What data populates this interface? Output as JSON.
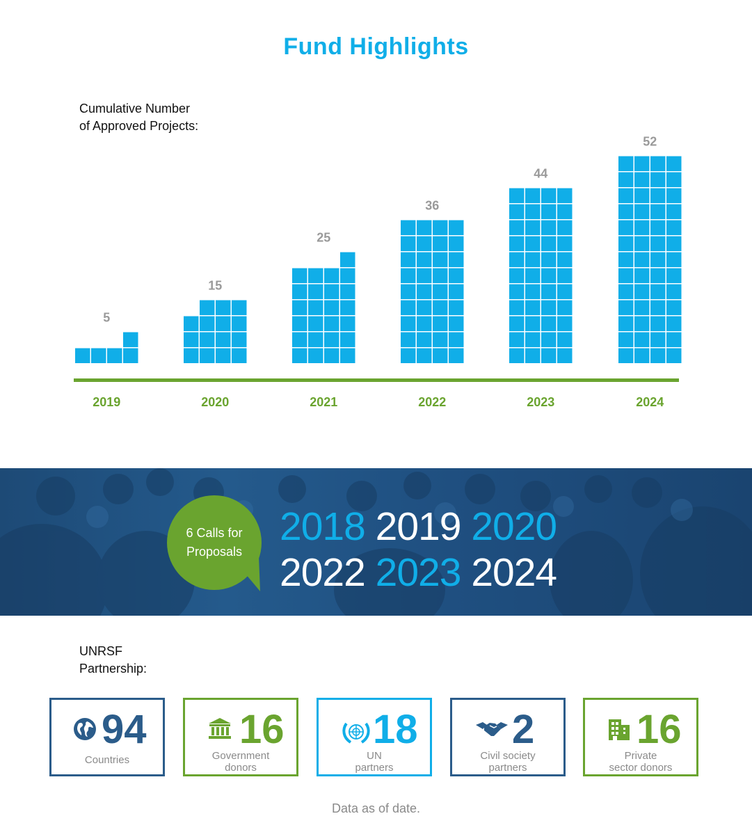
{
  "title": "Fund Highlights",
  "chart_label_line1": "Cumulative Number",
  "chart_label_line2": "of Approved Projects:",
  "chart_data": {
    "type": "bar",
    "categories": [
      "2019",
      "2020",
      "2021",
      "2022",
      "2023",
      "2024"
    ],
    "values": [
      5,
      15,
      25,
      36,
      44,
      52
    ],
    "ylabel": "Cumulative Number of Approved Projects",
    "colors": {
      "bar": "#10aee8",
      "axis": "#6aa42f",
      "value_label": "#9a9a9a",
      "category_label": "#6aa42f"
    }
  },
  "banner": {
    "bubble_line1": "6 Calls for",
    "bubble_line2": "Proposals",
    "years_row1": [
      {
        "text": "2018",
        "color": "blue"
      },
      {
        "text": "2019",
        "color": "white"
      },
      {
        "text": "2020",
        "color": "blue"
      }
    ],
    "years_row2": [
      {
        "text": "2022",
        "color": "white"
      },
      {
        "text": "2023",
        "color": "blue"
      },
      {
        "text": "2024",
        "color": "white"
      }
    ]
  },
  "partnership_line1": "UNRSF",
  "partnership_line2": "Partnership:",
  "stats": [
    {
      "value": "94",
      "label1": "Countries",
      "label2": "",
      "icon": "globe-icon",
      "color": "#2b5c8a"
    },
    {
      "value": "16",
      "label1": "Government",
      "label2": "donors",
      "icon": "government-building-icon",
      "color": "#6aa42f"
    },
    {
      "value": "18",
      "label1": "UN",
      "label2": "partners",
      "icon": "un-emblem-icon",
      "color": "#10aee8"
    },
    {
      "value": "2",
      "label1": "Civil society",
      "label2": "partners",
      "icon": "handshake-icon",
      "color": "#2b5c8a"
    },
    {
      "value": "16",
      "label1": "Private",
      "label2": "sector donors",
      "icon": "office-building-icon",
      "color": "#6aa42f"
    }
  ],
  "footnote": "Data as of date."
}
